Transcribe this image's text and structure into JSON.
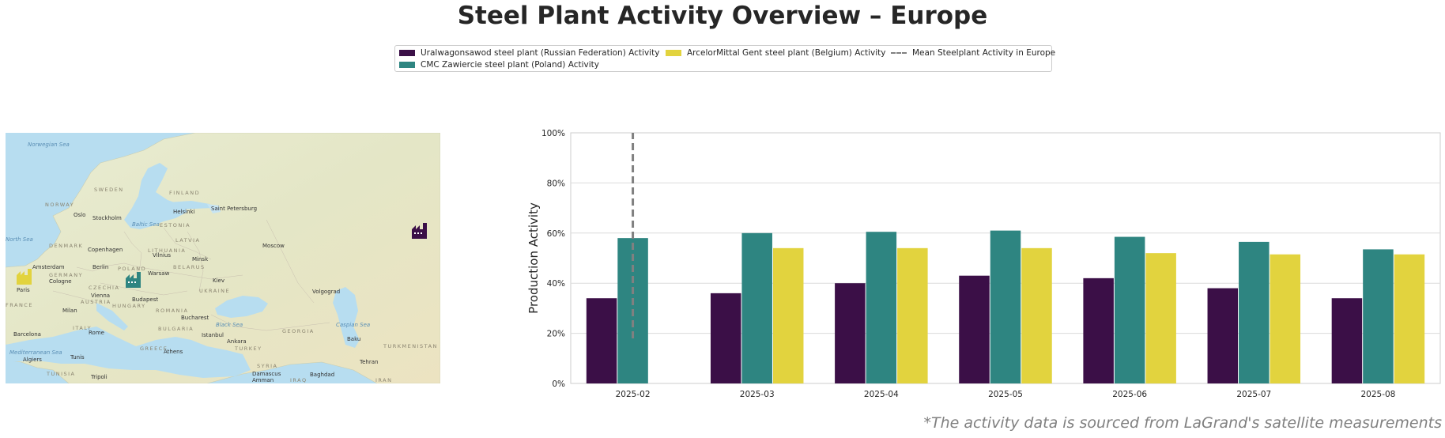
{
  "title": "Steel Plant Activity Overview – Europe",
  "footnote": "*The activity data is sourced from LaGrand's satellite measurements",
  "legend": {
    "items": [
      {
        "label": "Uralwagonsawod steel plant (Russian Federation) Activity",
        "color": "#3b0f47"
      },
      {
        "label": "CMC Zawiercie steel plant (Poland) Activity",
        "color": "#2e8581"
      },
      {
        "label": "ArcelorMittal Gent steel plant (Belgium) Activity",
        "color": "#e2d33e"
      },
      {
        "label": "Mean Steelplant Activity in Europe",
        "color": "#808080",
        "style": "dashed"
      }
    ]
  },
  "map": {
    "icon": "factory-icon",
    "places": [
      {
        "name": "Norwegian Sea",
        "kind": "sea"
      },
      {
        "name": "SWEDEN",
        "kind": "country"
      },
      {
        "name": "FINLAND",
        "kind": "country"
      },
      {
        "name": "NORWAY",
        "kind": "country"
      },
      {
        "name": "Oslo",
        "kind": "city"
      },
      {
        "name": "Stockholm",
        "kind": "city"
      },
      {
        "name": "Helsinki",
        "kind": "city"
      },
      {
        "name": "Saint Petersburg",
        "kind": "city"
      },
      {
        "name": "ESTONIA",
        "kind": "country"
      },
      {
        "name": "Baltic Sea",
        "kind": "sea"
      },
      {
        "name": "North Sea",
        "kind": "sea"
      },
      {
        "name": "LATVIA",
        "kind": "country"
      },
      {
        "name": "DENMARK",
        "kind": "country"
      },
      {
        "name": "Copenhagen",
        "kind": "city"
      },
      {
        "name": "LITHUANIA",
        "kind": "country"
      },
      {
        "name": "Vilnius",
        "kind": "city"
      },
      {
        "name": "Moscow",
        "kind": "city"
      },
      {
        "name": "Minsk",
        "kind": "city"
      },
      {
        "name": "Amsterdam",
        "kind": "city"
      },
      {
        "name": "Berlin",
        "kind": "city"
      },
      {
        "name": "POLAND",
        "kind": "country"
      },
      {
        "name": "BELARUS",
        "kind": "country"
      },
      {
        "name": "GERMANY",
        "kind": "country"
      },
      {
        "name": "Warsaw",
        "kind": "city"
      },
      {
        "name": "Cologne",
        "kind": "city"
      },
      {
        "name": "Kiev",
        "kind": "city"
      },
      {
        "name": "Paris",
        "kind": "city"
      },
      {
        "name": "CZECHIA",
        "kind": "country"
      },
      {
        "name": "UKRAINE",
        "kind": "country"
      },
      {
        "name": "Volgograd",
        "kind": "city"
      },
      {
        "name": "AUSTRIA",
        "kind": "country"
      },
      {
        "name": "Vienna",
        "kind": "city"
      },
      {
        "name": "Budapest",
        "kind": "city"
      },
      {
        "name": "FRANCE",
        "kind": "country"
      },
      {
        "name": "HUNGARY",
        "kind": "country"
      },
      {
        "name": "Milan",
        "kind": "city"
      },
      {
        "name": "ROMANIA",
        "kind": "country"
      },
      {
        "name": "Bucharest",
        "kind": "city"
      },
      {
        "name": "Black Sea",
        "kind": "sea"
      },
      {
        "name": "ITALY",
        "kind": "country"
      },
      {
        "name": "BULGARIA",
        "kind": "country"
      },
      {
        "name": "GEORGIA",
        "kind": "country"
      },
      {
        "name": "Caspian Sea",
        "kind": "sea"
      },
      {
        "name": "Barcelona",
        "kind": "city"
      },
      {
        "name": "Rome",
        "kind": "city"
      },
      {
        "name": "Istanbul",
        "kind": "city"
      },
      {
        "name": "Ankara",
        "kind": "city"
      },
      {
        "name": "Baku",
        "kind": "city"
      },
      {
        "name": "TURKEY",
        "kind": "country"
      },
      {
        "name": "TURKMENISTAN",
        "kind": "country"
      },
      {
        "name": "Mediterranean Sea",
        "kind": "sea"
      },
      {
        "name": "GREECE",
        "kind": "country"
      },
      {
        "name": "Athens",
        "kind": "city"
      },
      {
        "name": "Tunis",
        "kind": "city"
      },
      {
        "name": "Algiers",
        "kind": "city"
      },
      {
        "name": "Tehran",
        "kind": "city"
      },
      {
        "name": "SYRIA",
        "kind": "country"
      },
      {
        "name": "TUNISIA",
        "kind": "country"
      },
      {
        "name": "Damascus",
        "kind": "city"
      },
      {
        "name": "Baghdad",
        "kind": "city"
      },
      {
        "name": "Tripoli",
        "kind": "city"
      },
      {
        "name": "Amman",
        "kind": "city"
      },
      {
        "name": "IRAQ",
        "kind": "country"
      },
      {
        "name": "IRAN",
        "kind": "country"
      }
    ]
  },
  "chart_data": {
    "type": "bar",
    "categories": [
      "2025-02",
      "2025-03",
      "2025-04",
      "2025-05",
      "2025-06",
      "2025-07",
      "2025-08"
    ],
    "series": [
      {
        "name": "Uralwagonsawod steel plant (Russian Federation) Activity",
        "color": "#3b0f47",
        "values": [
          34,
          36,
          40,
          43,
          42,
          38,
          34
        ]
      },
      {
        "name": "CMC Zawiercie steel plant (Poland) Activity",
        "color": "#2e8581",
        "values": [
          58,
          60,
          60.5,
          61,
          58.5,
          56.5,
          53.5
        ]
      },
      {
        "name": "ArcelorMittal Gent steel plant (Belgium) Activity",
        "color": "#e2d33e",
        "values": [
          null,
          54,
          54,
          54,
          52,
          51.5,
          51.5
        ]
      }
    ],
    "mean_line": {
      "name": "Mean Steelplant Activity in Europe",
      "category": "2025-02",
      "from": 18,
      "to": 100
    },
    "ylabel": "Production Activity",
    "xlabel": "",
    "ylim": [
      0,
      100
    ],
    "yticks": [
      0,
      20,
      40,
      60,
      80,
      100
    ],
    "ytick_labels": [
      "0%",
      "20%",
      "40%",
      "60%",
      "80%",
      "100%"
    ],
    "grid": "horizontal",
    "legend_position": "top-center"
  }
}
